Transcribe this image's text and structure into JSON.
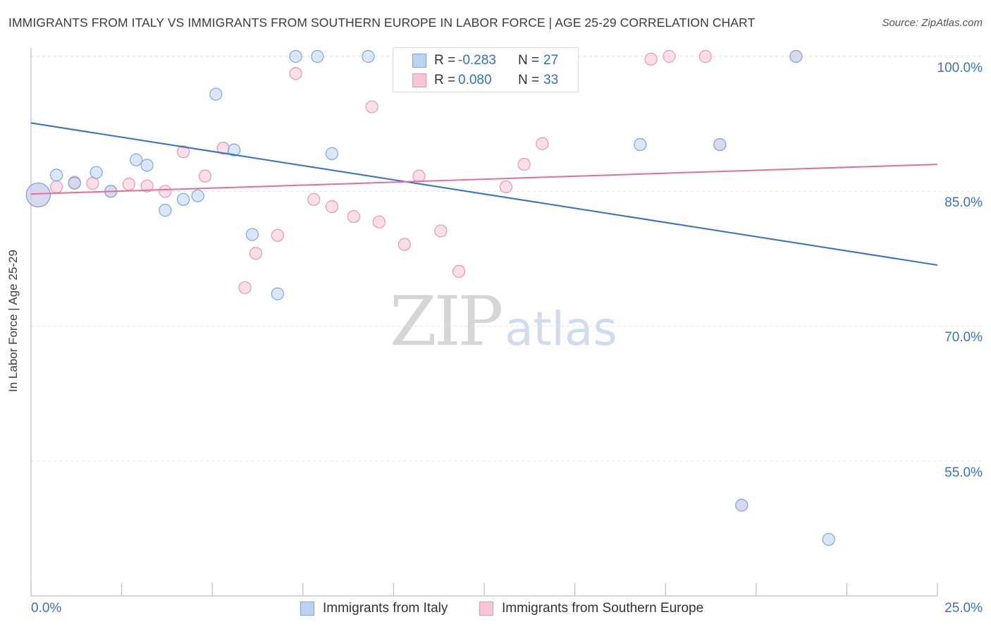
{
  "title": "IMMIGRANTS FROM ITALY VS IMMIGRANTS FROM SOUTHERN EUROPE IN LABOR FORCE | AGE 25-29 CORRELATION CHART",
  "source": "Source: ZipAtlas.com",
  "watermark": {
    "part1": "ZIP",
    "part2": "atlas"
  },
  "colors": {
    "italy_fill": "#b9d3f3",
    "italy_stroke": "#7aa7e0",
    "italy_line": "#2f6fd0",
    "southern_fill": "#f8c5d5",
    "southern_stroke": "#ec94b3",
    "southern_line": "#e36f98",
    "axis_label": "#3a72c8",
    "grid": "#e3e3e3"
  },
  "legend": {
    "italy": {
      "r_label": "R =",
      "r_value": "-0.283",
      "n_label": "N =",
      "n_value": "27"
    },
    "southern": {
      "r_label": "R =",
      "r_value": "0.080",
      "n_label": "N =",
      "n_value": "33"
    }
  },
  "bottom_legend": {
    "italy": "Immigrants from Italy",
    "southern": "Immigrants from Southern Europe"
  },
  "chart_data": {
    "type": "scatter",
    "title": "IMMIGRANTS FROM ITALY VS IMMIGRANTS FROM SOUTHERN EUROPE IN LABOR FORCE | AGE 25-29 CORRELATION CHART",
    "xlabel": "",
    "ylabel": "In Labor Force | Age 25-29",
    "xlim": [
      0,
      25
    ],
    "ylim": [
      40,
      100
    ],
    "x_tick_labels": [
      "0.0%",
      "25.0%"
    ],
    "y_ticks": [
      55,
      70,
      85,
      100
    ],
    "y_tick_labels": [
      "55.0%",
      "70.0%",
      "85.0%",
      "100.0%"
    ],
    "grid": true,
    "series": [
      {
        "name": "Immigrants from Italy",
        "color": "#b9d3f3",
        "points": [
          {
            "x": 0.2,
            "y": 84.6,
            "big": true
          },
          {
            "x": 0.7,
            "y": 86.8
          },
          {
            "x": 1.2,
            "y": 85.9
          },
          {
            "x": 1.8,
            "y": 87.1
          },
          {
            "x": 2.2,
            "y": 85.0
          },
          {
            "x": 2.9,
            "y": 88.5
          },
          {
            "x": 3.2,
            "y": 87.9
          },
          {
            "x": 3.7,
            "y": 82.9
          },
          {
            "x": 4.2,
            "y": 84.1
          },
          {
            "x": 4.6,
            "y": 84.5
          },
          {
            "x": 5.1,
            "y": 95.8
          },
          {
            "x": 5.6,
            "y": 89.6
          },
          {
            "x": 6.1,
            "y": 80.2
          },
          {
            "x": 6.8,
            "y": 73.6
          },
          {
            "x": 7.3,
            "y": 100.0
          },
          {
            "x": 7.9,
            "y": 100.0
          },
          {
            "x": 8.3,
            "y": 89.2
          },
          {
            "x": 9.3,
            "y": 100.0
          },
          {
            "x": 10.3,
            "y": 100.0
          },
          {
            "x": 12.3,
            "y": 100.0
          },
          {
            "x": 13.3,
            "y": 100.0
          },
          {
            "x": 14.1,
            "y": 100.0
          },
          {
            "x": 16.8,
            "y": 90.2
          },
          {
            "x": 19.0,
            "y": 90.2
          },
          {
            "x": 19.6,
            "y": 50.1
          },
          {
            "x": 21.1,
            "y": 100.0
          },
          {
            "x": 22.0,
            "y": 46.3
          }
        ],
        "trend": {
          "x": [
            0,
            25
          ],
          "y": [
            92.6,
            76.8
          ]
        }
      },
      {
        "name": "Immigrants from Southern Europe",
        "color": "#f8c5d5",
        "points": [
          {
            "x": 0.2,
            "y": 84.6,
            "big": true
          },
          {
            "x": 0.7,
            "y": 85.5
          },
          {
            "x": 1.2,
            "y": 86.0
          },
          {
            "x": 1.7,
            "y": 85.9
          },
          {
            "x": 2.2,
            "y": 85.0
          },
          {
            "x": 2.7,
            "y": 85.8
          },
          {
            "x": 3.2,
            "y": 85.6
          },
          {
            "x": 3.7,
            "y": 85.0
          },
          {
            "x": 4.2,
            "y": 89.4
          },
          {
            "x": 4.8,
            "y": 86.7
          },
          {
            "x": 5.3,
            "y": 89.8
          },
          {
            "x": 5.9,
            "y": 74.3
          },
          {
            "x": 6.2,
            "y": 78.1
          },
          {
            "x": 6.8,
            "y": 80.1
          },
          {
            "x": 7.3,
            "y": 98.1
          },
          {
            "x": 7.8,
            "y": 84.1
          },
          {
            "x": 8.3,
            "y": 83.3
          },
          {
            "x": 8.9,
            "y": 82.2
          },
          {
            "x": 9.4,
            "y": 94.4
          },
          {
            "x": 9.6,
            "y": 81.6
          },
          {
            "x": 10.3,
            "y": 79.1
          },
          {
            "x": 10.7,
            "y": 86.7
          },
          {
            "x": 11.3,
            "y": 80.6
          },
          {
            "x": 11.8,
            "y": 76.1
          },
          {
            "x": 13.1,
            "y": 85.5
          },
          {
            "x": 13.6,
            "y": 88.0
          },
          {
            "x": 14.1,
            "y": 90.3
          },
          {
            "x": 17.1,
            "y": 99.7
          },
          {
            "x": 17.6,
            "y": 100.0
          },
          {
            "x": 18.6,
            "y": 100.0
          },
          {
            "x": 19.0,
            "y": 90.2
          },
          {
            "x": 19.6,
            "y": 50.1
          },
          {
            "x": 21.1,
            "y": 100.0
          }
        ],
        "trend": {
          "x": [
            0,
            25
          ],
          "y": [
            84.7,
            88.0
          ]
        }
      }
    ]
  }
}
